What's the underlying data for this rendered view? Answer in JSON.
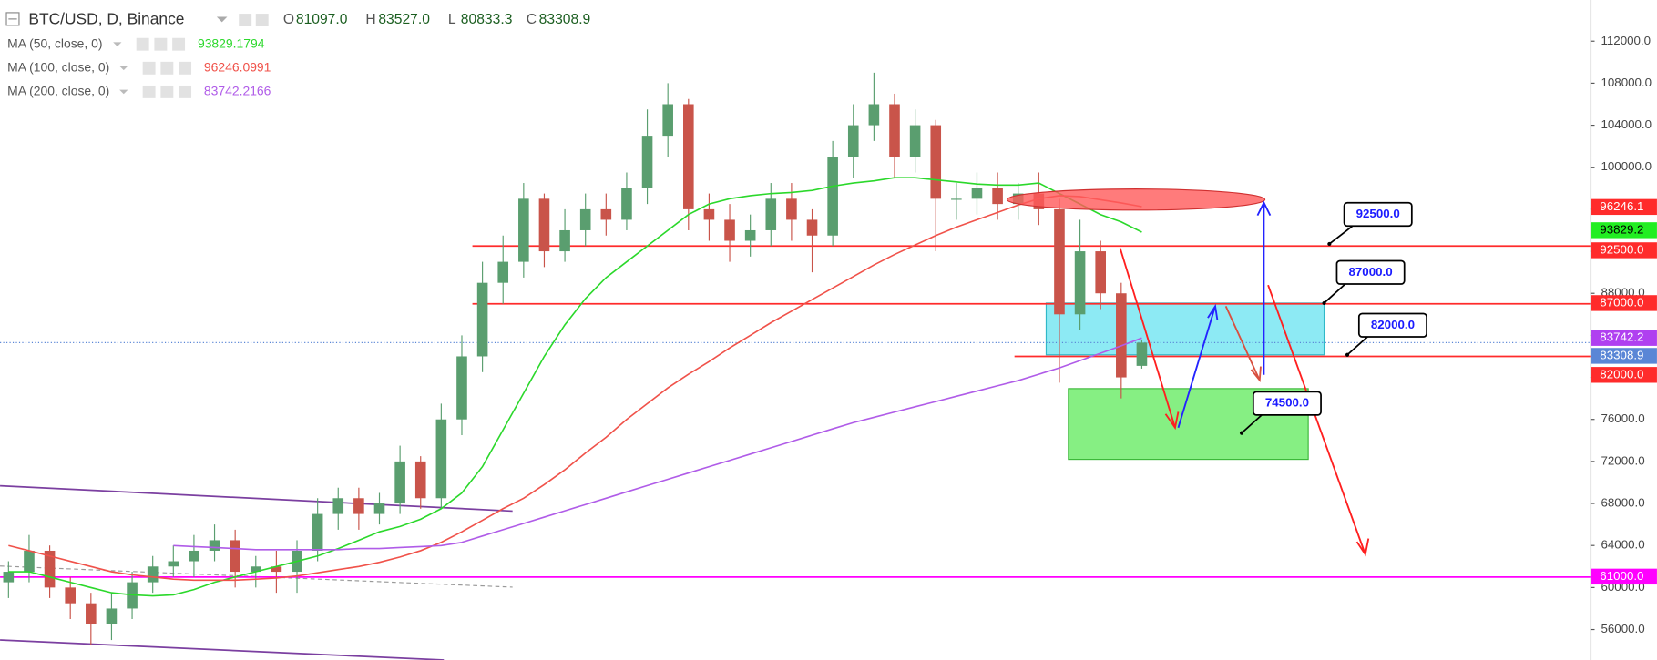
{
  "header": {
    "symbol": "BTC/USD, D, Binance",
    "ohlc": [
      {
        "key": "O",
        "value": "81097.0"
      },
      {
        "key": "H",
        "value": "83527.0"
      },
      {
        "key": "L",
        "value": "80833.3"
      },
      {
        "key": "C",
        "value": "83308.9"
      }
    ]
  },
  "chart_data": {
    "type": "candlestick",
    "up_color": "#5a9e6f",
    "down_color": "#c9544a",
    "open": [
      60500,
      61500,
      63500,
      60000,
      58500,
      56500,
      58000,
      60500,
      62000,
      62500,
      63500,
      64500,
      61500,
      62000,
      61500,
      63500,
      67000,
      68500,
      67000,
      68000,
      72000,
      68500,
      76000,
      82000,
      89000,
      91000,
      97000,
      92000,
      94000,
      96000,
      95000,
      98000,
      103000,
      106000,
      96000,
      95000,
      93000,
      94000,
      97000,
      95000,
      93500,
      101000,
      104000,
      106000,
      101000,
      104000,
      97000,
      97000,
      98000,
      96500,
      97500,
      96000,
      86000,
      92000,
      88000,
      81097
    ],
    "high": [
      62500,
      65000,
      64000,
      61000,
      59500,
      59500,
      61500,
      63000,
      64000,
      65000,
      66000,
      65500,
      63000,
      63500,
      64500,
      68500,
      69500,
      69500,
      69000,
      73500,
      72500,
      77500,
      84000,
      91000,
      93500,
      98500,
      97500,
      96000,
      97500,
      97500,
      99500,
      105500,
      108000,
      106500,
      97500,
      96500,
      95500,
      98500,
      98500,
      96000,
      102500,
      106000,
      109000,
      107000,
      105500,
      104500,
      98500,
      99500,
      99500,
      98500,
      99500,
      97000,
      95000,
      93000,
      89000,
      83527
    ],
    "low": [
      59000,
      60500,
      59000,
      57000,
      54500,
      55000,
      57000,
      59500,
      61000,
      61000,
      62500,
      60000,
      60000,
      59500,
      59500,
      62500,
      65500,
      65500,
      66000,
      67000,
      67500,
      67500,
      74500,
      80500,
      87000,
      89500,
      90500,
      91000,
      92500,
      93500,
      94000,
      96500,
      101000,
      94000,
      93000,
      91000,
      91500,
      92500,
      93000,
      90000,
      92500,
      99000,
      102500,
      99000,
      99500,
      92000,
      95000,
      95500,
      95000,
      95000,
      94500,
      79500,
      84500,
      86500,
      78000,
      80833.3
    ],
    "close": [
      61500,
      63500,
      60000,
      58500,
      56500,
      58000,
      60500,
      62000,
      62500,
      63500,
      64500,
      61500,
      62000,
      61500,
      63500,
      67000,
      68500,
      67000,
      68000,
      72000,
      68500,
      76000,
      82000,
      89000,
      91000,
      97000,
      92000,
      94000,
      96000,
      95000,
      98000,
      103000,
      106000,
      96000,
      95000,
      93000,
      94000,
      97000,
      95000,
      93500,
      101000,
      104000,
      106000,
      101000,
      104000,
      97000,
      97000,
      98000,
      96500,
      97500,
      96000,
      86000,
      92000,
      88000,
      80000,
      83308.9
    ],
    "series": [
      {
        "name": "MA (50, close, 0)",
        "color": "#2bd82b",
        "legend_value": "93829.1794",
        "values": [
          61500,
          61500,
          61000,
          60500,
          60000,
          59500,
          59300,
          59200,
          59300,
          59800,
          60500,
          61000,
          61500,
          62000,
          62500,
          63000,
          63700,
          64500,
          65300,
          65800,
          66500,
          67500,
          69000,
          71500,
          75000,
          78500,
          82000,
          85000,
          87500,
          89500,
          91000,
          92500,
          94000,
          95500,
          96500,
          97000,
          97300,
          97500,
          97600,
          97800,
          98200,
          98500,
          98700,
          99000,
          99000,
          98800,
          98600,
          98400,
          98300,
          98300,
          98500,
          97500,
          96500,
          95500,
          94800,
          93829.1794
        ]
      },
      {
        "name": "MA (100, close, 0)",
        "color": "#f0524a",
        "legend_value": "96246.0991",
        "values": [
          64000,
          63500,
          63000,
          62500,
          62000,
          61500,
          61200,
          61000,
          60800,
          60700,
          60700,
          60700,
          60800,
          60900,
          61100,
          61400,
          61700,
          62000,
          62400,
          62900,
          63500,
          64300,
          65300,
          66400,
          67500,
          68500,
          69800,
          71200,
          72800,
          74300,
          76000,
          77500,
          79000,
          80300,
          81500,
          82800,
          84000,
          85200,
          86300,
          87400,
          88500,
          89600,
          90700,
          91700,
          92600,
          93500,
          94300,
          95000,
          95700,
          96400,
          97000,
          97300,
          97200,
          96900,
          96600,
          96246.0991
        ]
      },
      {
        "name": "MA (200, close, 0)",
        "color": "#b05ce8",
        "legend_value": "83742.2166",
        "values": [
          null,
          null,
          null,
          null,
          null,
          null,
          null,
          null,
          64000,
          63900,
          63800,
          63700,
          63600,
          63600,
          63600,
          63600,
          63600,
          63700,
          63700,
          63800,
          63900,
          64000,
          64300,
          64900,
          65500,
          66100,
          66700,
          67300,
          67900,
          68500,
          69100,
          69700,
          70300,
          70900,
          71500,
          72100,
          72700,
          73300,
          73900,
          74500,
          75100,
          75700,
          76200,
          76700,
          77200,
          77700,
          78200,
          78700,
          79200,
          79700,
          80300,
          80900,
          81600,
          82300,
          83000,
          83742.2166
        ]
      }
    ],
    "ylim": [
      53100,
      115920
    ],
    "yticks": [
      {
        "value": 56000,
        "label": "56000.0"
      },
      {
        "value": 60000,
        "label": "60000.0"
      },
      {
        "value": 64000,
        "label": "64000.0"
      },
      {
        "value": 68000,
        "label": "68000.0"
      },
      {
        "value": 72000,
        "label": "72000.0"
      },
      {
        "value": 76000,
        "label": "76000.0"
      },
      {
        "value": 80000,
        "label": "80000.0"
      },
      {
        "value": 84000,
        "label": "84000.0"
      },
      {
        "value": 88000,
        "label": "88000.0"
      },
      {
        "value": 92000,
        "label": "92000.0"
      },
      {
        "value": 96000,
        "label": "96000.0"
      },
      {
        "value": 100000,
        "label": "100000.0"
      },
      {
        "value": 104000,
        "label": "104000.0"
      },
      {
        "value": 108000,
        "label": "108000.0"
      },
      {
        "value": 112000,
        "label": "112000.0"
      }
    ],
    "price_labels": [
      {
        "value": 96246.1,
        "label": "96246.1",
        "color": "#ff2b2b",
        "text_color": "#ffffff"
      },
      {
        "value": 93829.2,
        "label": "93829.2",
        "color": "#22ee22",
        "text_color": "#000000"
      },
      {
        "value": 92500,
        "label": "92500.0",
        "color": "#ff2b2b",
        "text_color": "#ffffff",
        "line": "solid"
      },
      {
        "value": 87000,
        "label": "87000.0",
        "color": "#ff2b2b",
        "text_color": "#ffffff",
        "line": "solid"
      },
      {
        "value": 83742.2,
        "label": "83742.2",
        "color": "#b040f0",
        "text_color": "#ffffff"
      },
      {
        "value": 83308.9,
        "label": "83308.9",
        "color": "#5a86d6",
        "text_color": "#ffffff",
        "line": "dotted"
      },
      {
        "value": 82000,
        "label": "82000.0",
        "color": "#ff2b2b",
        "text_color": "#ffffff",
        "line": "solid"
      },
      {
        "value": 61000,
        "label": "61000.0",
        "color": "#ff00ff",
        "text_color": "#ffffff",
        "line": "solid"
      }
    ],
    "callouts": [
      "92500.0",
      "87000.0",
      "82000.0",
      "74500.0"
    ]
  }
}
